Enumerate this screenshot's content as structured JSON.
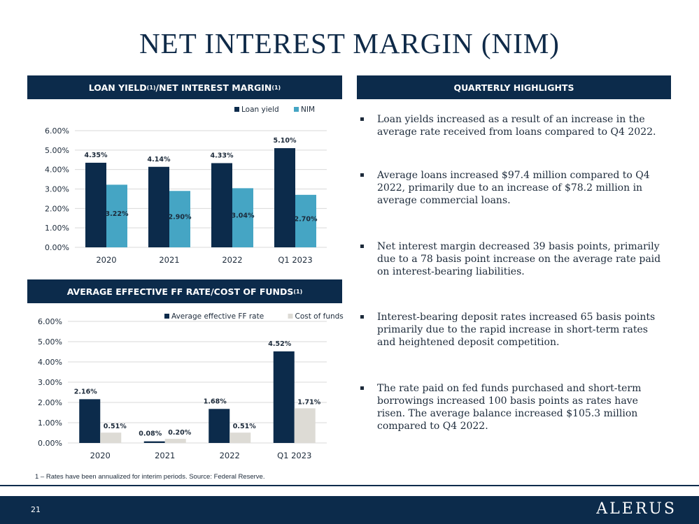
{
  "title": "NET INTEREST MARGIN (NIM)",
  "sections": {
    "loan_yield": {
      "label": "LOAN YIELD",
      "sup1": "(1)",
      "label_mid": "/NET INTEREST MARGIN",
      "sup2": "(1)"
    },
    "highlights": {
      "label": "QUARTERLY HIGHLIGHTS"
    },
    "ff_rate": {
      "label": "AVERAGE EFFECTIVE FF RATE/COST OF FUNDS",
      "sup": "(1)"
    }
  },
  "chart_data": [
    {
      "type": "bar",
      "categories": [
        "2020",
        "2021",
        "2022",
        "Q1 2023"
      ],
      "series": [
        {
          "name": "Loan yield",
          "values": [
            4.35,
            4.14,
            4.33,
            5.1
          ],
          "labels": [
            "4.35%",
            "4.14%",
            "4.33%",
            "5.10%"
          ],
          "color": "#0c2b4b"
        },
        {
          "name": "NIM",
          "values": [
            3.22,
            2.9,
            3.04,
            2.7
          ],
          "labels": [
            "3.22%",
            "2.90%",
            "3.04%",
            "2.70%"
          ],
          "color": "#45a5c4"
        }
      ],
      "yticks": [
        "0.00%",
        "1.00%",
        "2.00%",
        "3.00%",
        "4.00%",
        "5.00%",
        "6.00%"
      ],
      "ylim": [
        0,
        6
      ],
      "legend": "top-right",
      "grid": true
    },
    {
      "type": "bar",
      "categories": [
        "2020",
        "2021",
        "2022",
        "Q1 2023"
      ],
      "series": [
        {
          "name": "Average effective FF rate",
          "values": [
            2.16,
            0.08,
            1.68,
            4.52
          ],
          "labels": [
            "2.16%",
            "0.08%",
            "1.68%",
            "4.52%"
          ],
          "color": "#0c2b4b"
        },
        {
          "name": "Cost of funds",
          "values": [
            0.51,
            0.2,
            0.51,
            1.71
          ],
          "labels": [
            "0.51%",
            "0.20%",
            "0.51%",
            "1.71%"
          ],
          "color": "#dddbd5"
        }
      ],
      "yticks": [
        "0.00%",
        "1.00%",
        "2.00%",
        "3.00%",
        "4.00%",
        "5.00%",
        "6.00%"
      ],
      "ylim": [
        0,
        6
      ],
      "legend": "top-right",
      "grid": true
    }
  ],
  "highlights": [
    "Loan yields increased as a result of an increase in the average rate received from loans compared to Q4 2022.",
    "Average loans increased $97.4 million compared to Q4 2022, primarily due to an increase of $78.2 million in average commercial loans.",
    "Net interest margin decreased 39 basis points, primarily due to a 78 basis point increase on the average rate paid on interest-bearing liabilities.",
    "Interest-bearing deposit rates increased 65 basis points primarily due to the rapid increase in short-term rates and heightened deposit competition.",
    "The rate paid on fed funds purchased and short-term borrowings increased 100 basis points as rates have risen. The average balance increased $105.3 million compared to Q4 2022."
  ],
  "footnote": "1 – Rates have been annualized for interim periods. Source: Federal Reserve.",
  "page_number": "21",
  "logo": "ALERUS"
}
